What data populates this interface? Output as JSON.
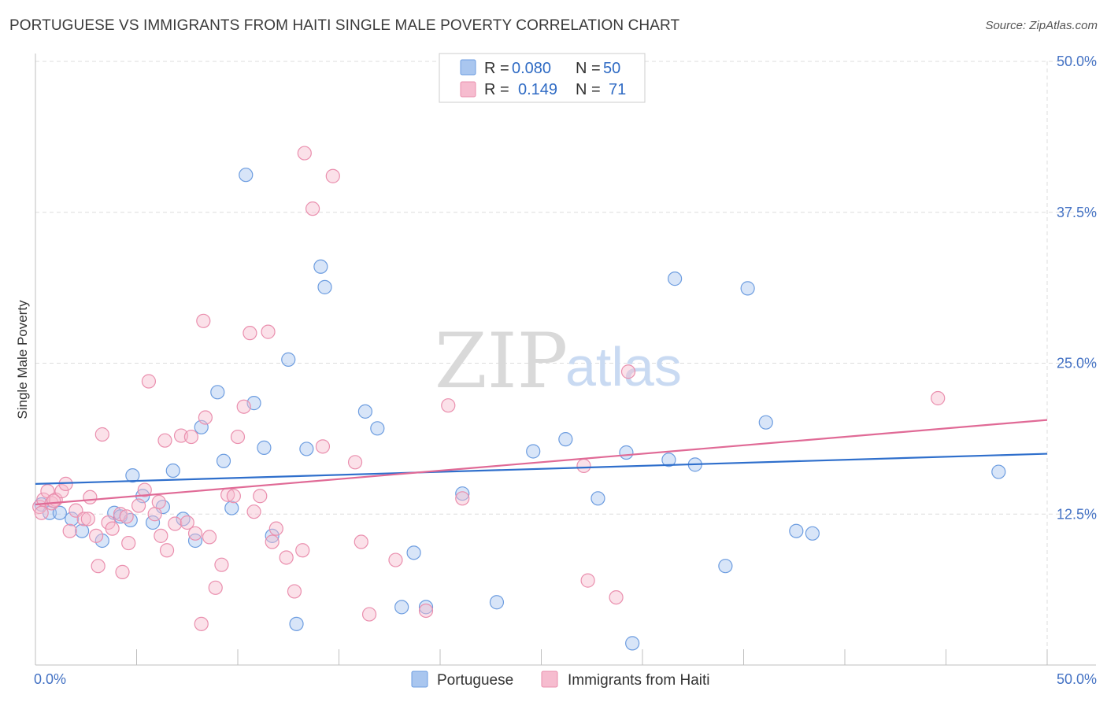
{
  "header": {
    "title": "PORTUGUESE VS IMMIGRANTS FROM HAITI SINGLE MALE POVERTY CORRELATION CHART",
    "source": "Source: ZipAtlas.com"
  },
  "watermark": {
    "zip": "ZIP",
    "atlas": "atlas"
  },
  "colors": {
    "portuguese_fill": "#a9c6ef",
    "portuguese_stroke": "#6d9de0",
    "portuguese_line": "#2f6fcc",
    "haiti_fill": "#f6bccf",
    "haiti_stroke": "#ea8fae",
    "haiti_line": "#e06a96",
    "grid": "#dddddd",
    "tick_text": "#4472c4"
  },
  "legend": {
    "rows": [
      {
        "r_label": "R =",
        "r_value": "0.080",
        "n_label": "N =",
        "n_value": "50"
      },
      {
        "r_label": "R =",
        "r_value": "0.149",
        "n_label": "N =",
        "n_value": "71"
      }
    ]
  },
  "bottom_legend": {
    "items": [
      {
        "label": "Portuguese"
      },
      {
        "label": "Immigrants from Haiti"
      }
    ]
  },
  "chart_data": {
    "type": "scatter",
    "title": "PORTUGUESE VS IMMIGRANTS FROM HAITI SINGLE MALE POVERTY CORRELATION CHART",
    "xlabel": "",
    "ylabel": "Single Male Poverty",
    "xlim": [
      0,
      50
    ],
    "ylim": [
      0,
      50
    ],
    "x_tick_labels": [
      "0.0%",
      "50.0%"
    ],
    "y_ticks": [
      12.5,
      25.0,
      37.5,
      50.0
    ],
    "y_tick_labels": [
      "12.5%",
      "25.0%",
      "37.5%",
      "50.0%"
    ],
    "grid": true,
    "legend_position": "top-center",
    "series": [
      {
        "name": "Portuguese",
        "r": 0.08,
        "n": 50,
        "trend": {
          "x": [
            0,
            50
          ],
          "y": [
            15.0,
            17.5
          ]
        },
        "points": [
          [
            0.3,
            13.3
          ],
          [
            0.7,
            12.6
          ],
          [
            1.2,
            12.6
          ],
          [
            1.8,
            12.1
          ],
          [
            2.3,
            11.1
          ],
          [
            3.9,
            12.6
          ],
          [
            3.3,
            10.3
          ],
          [
            4.2,
            12.3
          ],
          [
            4.7,
            12.0
          ],
          [
            4.8,
            15.7
          ],
          [
            5.3,
            14.0
          ],
          [
            5.8,
            11.8
          ],
          [
            6.3,
            13.1
          ],
          [
            6.8,
            16.1
          ],
          [
            7.3,
            12.1
          ],
          [
            7.9,
            10.3
          ],
          [
            8.2,
            19.7
          ],
          [
            9.0,
            22.6
          ],
          [
            9.3,
            16.9
          ],
          [
            9.7,
            13.0
          ],
          [
            10.4,
            40.6
          ],
          [
            10.8,
            21.7
          ],
          [
            11.3,
            18.0
          ],
          [
            11.7,
            10.7
          ],
          [
            12.5,
            25.3
          ],
          [
            12.9,
            3.4
          ],
          [
            13.4,
            17.9
          ],
          [
            14.1,
            33.0
          ],
          [
            14.3,
            31.3
          ],
          [
            16.3,
            21.0
          ],
          [
            16.9,
            19.6
          ],
          [
            18.1,
            4.8
          ],
          [
            18.7,
            9.3
          ],
          [
            19.3,
            4.8
          ],
          [
            21.1,
            14.2
          ],
          [
            22.8,
            5.2
          ],
          [
            24.6,
            17.7
          ],
          [
            26.2,
            18.7
          ],
          [
            27.8,
            13.8
          ],
          [
            29.2,
            17.6
          ],
          [
            29.5,
            1.8
          ],
          [
            31.3,
            17.0
          ],
          [
            31.6,
            32.0
          ],
          [
            32.6,
            16.6
          ],
          [
            34.1,
            8.2
          ],
          [
            35.2,
            31.2
          ],
          [
            36.1,
            20.1
          ],
          [
            37.6,
            11.1
          ],
          [
            38.4,
            10.9
          ],
          [
            47.6,
            16.0
          ]
        ]
      },
      {
        "name": "Immigrants from Haiti",
        "r": 0.149,
        "n": 71,
        "trend": {
          "x": [
            0,
            50
          ],
          "y": [
            13.3,
            20.3
          ]
        },
        "points": [
          [
            0.2,
            13.1
          ],
          [
            0.4,
            13.7
          ],
          [
            0.6,
            14.4
          ],
          [
            0.8,
            13.4
          ],
          [
            1.0,
            13.7
          ],
          [
            1.3,
            14.4
          ],
          [
            1.5,
            15.0
          ],
          [
            1.7,
            11.1
          ],
          [
            2.0,
            12.8
          ],
          [
            2.4,
            12.1
          ],
          [
            2.6,
            12.1
          ],
          [
            2.7,
            13.9
          ],
          [
            3.0,
            10.7
          ],
          [
            3.1,
            8.2
          ],
          [
            3.3,
            19.1
          ],
          [
            3.6,
            11.8
          ],
          [
            3.8,
            11.3
          ],
          [
            4.2,
            12.5
          ],
          [
            4.3,
            7.7
          ],
          [
            4.5,
            12.3
          ],
          [
            4.6,
            10.1
          ],
          [
            5.1,
            13.2
          ],
          [
            5.4,
            14.5
          ],
          [
            5.6,
            23.5
          ],
          [
            5.9,
            12.5
          ],
          [
            6.2,
            10.7
          ],
          [
            6.1,
            13.5
          ],
          [
            6.5,
            9.5
          ],
          [
            6.4,
            18.6
          ],
          [
            6.9,
            11.7
          ],
          [
            7.2,
            19.0
          ],
          [
            7.5,
            11.8
          ],
          [
            7.7,
            18.9
          ],
          [
            7.9,
            10.9
          ],
          [
            8.2,
            3.4
          ],
          [
            8.3,
            28.5
          ],
          [
            8.4,
            20.5
          ],
          [
            8.6,
            10.6
          ],
          [
            8.9,
            6.4
          ],
          [
            9.2,
            8.3
          ],
          [
            9.5,
            14.1
          ],
          [
            9.8,
            14.0
          ],
          [
            10.0,
            18.9
          ],
          [
            10.3,
            21.4
          ],
          [
            10.6,
            27.5
          ],
          [
            10.8,
            12.7
          ],
          [
            11.1,
            14.0
          ],
          [
            11.5,
            27.6
          ],
          [
            11.7,
            10.2
          ],
          [
            11.9,
            11.3
          ],
          [
            12.4,
            8.9
          ],
          [
            12.8,
            6.1
          ],
          [
            13.3,
            42.4
          ],
          [
            13.2,
            9.5
          ],
          [
            13.7,
            37.8
          ],
          [
            14.2,
            18.1
          ],
          [
            14.7,
            40.5
          ],
          [
            15.8,
            16.8
          ],
          [
            16.1,
            10.2
          ],
          [
            16.5,
            4.2
          ],
          [
            17.8,
            8.7
          ],
          [
            19.3,
            4.5
          ],
          [
            20.4,
            21.5
          ],
          [
            21.1,
            13.8
          ],
          [
            27.1,
            16.5
          ],
          [
            27.3,
            7.0
          ],
          [
            28.7,
            5.6
          ],
          [
            29.3,
            24.3
          ],
          [
            44.6,
            22.1
          ],
          [
            0.3,
            12.6
          ],
          [
            0.9,
            13.6
          ]
        ]
      }
    ]
  }
}
